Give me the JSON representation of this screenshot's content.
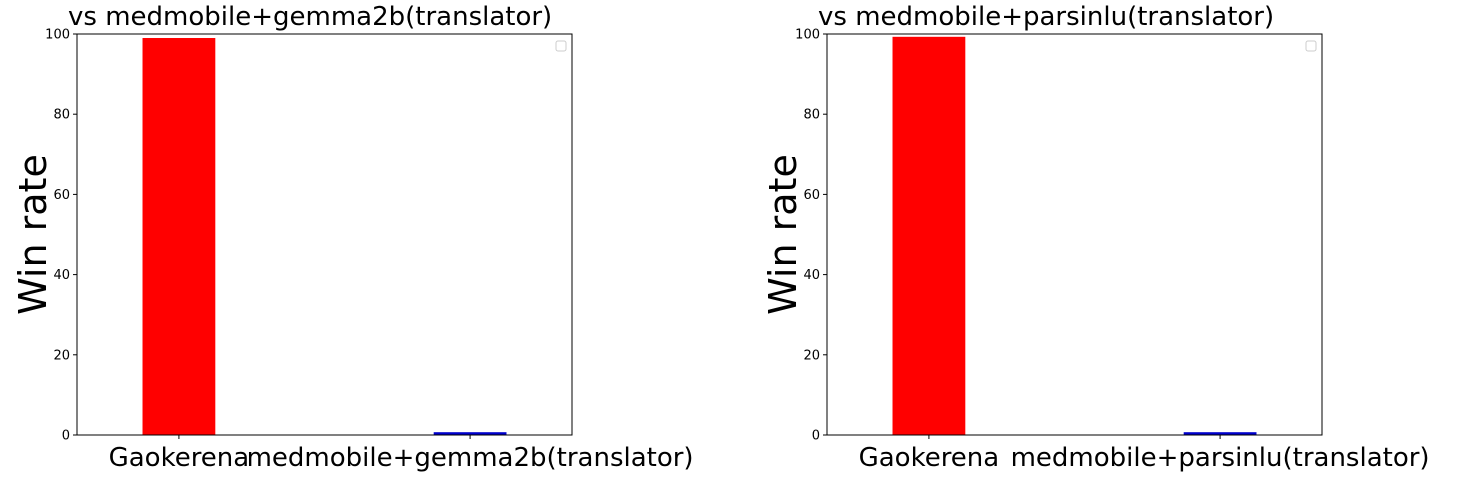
{
  "chart_data": [
    {
      "type": "bar",
      "title": "vs medmobile+gemma2b(translator)",
      "ylabel": "Win rate",
      "xlabel": "",
      "categories": [
        "Gaokerena",
        "medmobile+gemma2b(translator)"
      ],
      "values": [
        99.0,
        0.7
      ],
      "colors": [
        "#ff0000",
        "#0000cd"
      ],
      "ylim": [
        0,
        100
      ],
      "yticks": [
        "0",
        "20",
        "40",
        "60",
        "80",
        "100"
      ],
      "legend": "top-right",
      "grid": false
    },
    {
      "type": "bar",
      "title": "vs medmobile+parsinlu(translator)",
      "ylabel": "Win rate",
      "xlabel": "",
      "categories": [
        "Gaokerena",
        "medmobile+parsinlu(translator)"
      ],
      "values": [
        99.3,
        0.7
      ],
      "colors": [
        "#ff0000",
        "#0000cd"
      ],
      "ylim": [
        0,
        100
      ],
      "yticks": [
        "0",
        "20",
        "40",
        "60",
        "80",
        "100"
      ],
      "legend": "top-right",
      "grid": false
    }
  ]
}
